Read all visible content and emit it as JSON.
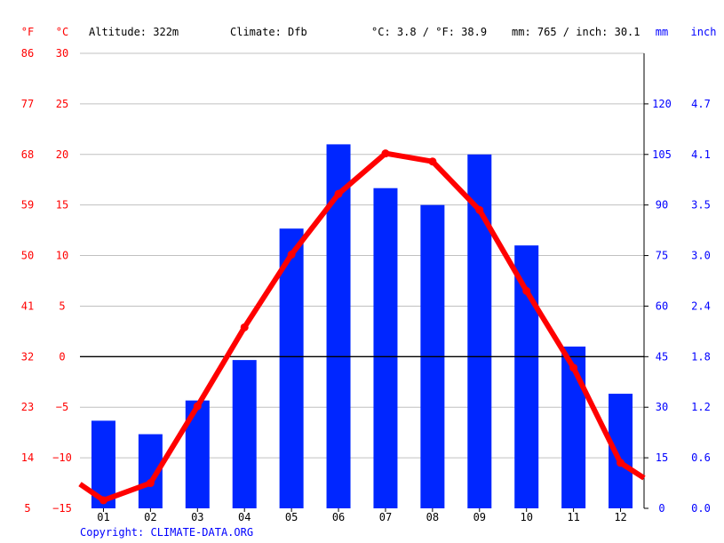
{
  "header": {
    "unit_f": "°F",
    "unit_c": "°C",
    "altitude": "Altitude: 322m",
    "climate": "Climate: Dfb",
    "avg_temp": "°C: 3.8 / °F: 38.9",
    "precip": "mm: 765 / inch: 30.1",
    "unit_mm": "mm",
    "unit_inch": "inch"
  },
  "axes": {
    "fahrenheit_ticks": [
      "86",
      "77",
      "68",
      "59",
      "50",
      "41",
      "32",
      "23",
      "14",
      "5"
    ],
    "celsius_ticks": [
      "30",
      "25",
      "20",
      "15",
      "10",
      "5",
      "0",
      "−5",
      "−10",
      "−15"
    ],
    "mm_ticks": [
      "120",
      "105",
      "90",
      "75",
      "60",
      "45",
      "30",
      "15",
      "0"
    ],
    "inch_ticks": [
      "4.7",
      "4.1",
      "3.5",
      "3.0",
      "2.4",
      "1.8",
      "1.2",
      "0.6",
      "0.0"
    ]
  },
  "copyright": "Copyright: CLIMATE-DATA.ORG",
  "colors": {
    "temperature": "#ff0000",
    "precipitation": "#0026ff",
    "grid": "#c0c0c0",
    "zero_line": "#000000"
  },
  "chart_data": {
    "type": "bar+line",
    "categories": [
      "01",
      "02",
      "03",
      "04",
      "05",
      "06",
      "07",
      "08",
      "09",
      "10",
      "11",
      "12"
    ],
    "series": [
      {
        "name": "mm",
        "type": "bar",
        "axis": "right",
        "values": [
          26,
          22,
          32,
          44,
          83,
          108,
          95,
          90,
          105,
          78,
          48,
          34
        ]
      },
      {
        "name": "°C",
        "type": "line",
        "axis": "left",
        "values": [
          -14.2,
          -12.5,
          -4.9,
          2.9,
          10.1,
          16.1,
          20.1,
          19.3,
          14.5,
          6.5,
          -1.1,
          -10.5
        ]
      }
    ],
    "temp_ylim": [
      -15,
      30
    ],
    "precip_ylim": [
      0,
      135
    ],
    "edge_temps": [
      -12.6,
      -12.0
    ],
    "grid": true
  }
}
